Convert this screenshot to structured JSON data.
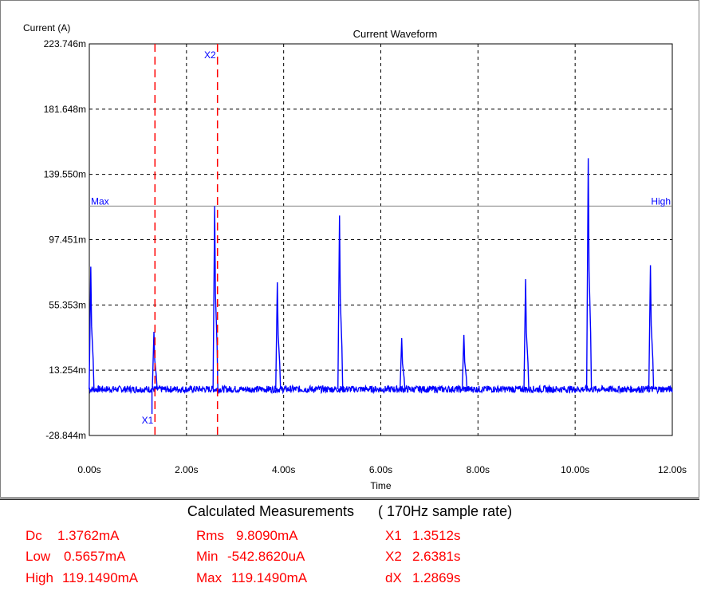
{
  "chart_data": {
    "type": "line",
    "title": "Current Waveform",
    "ylabel": "Current (A)",
    "xlabel": "Time",
    "xlim": [
      0,
      12
    ],
    "ylim": [
      -28.844,
      223.746
    ],
    "y_ticks": [
      "223.746m",
      "181.648m",
      "139.550m",
      "97.451m",
      "55.353m",
      "13.254m",
      "-28.844m"
    ],
    "y_tick_values": [
      223.746,
      181.648,
      139.55,
      97.451,
      55.353,
      13.254,
      -28.844
    ],
    "x_ticks": [
      "0.00s",
      "2.00s",
      "4.00s",
      "6.00s",
      "8.00s",
      "10.00s",
      "12.00s"
    ],
    "x_tick_values": [
      0,
      2,
      4,
      6,
      8,
      10,
      12
    ],
    "grid": true,
    "series": [
      {
        "color": "#0000ff",
        "baseline": 1.0,
        "peaks": [
          {
            "x": 0.03,
            "y": 80.0
          },
          {
            "x": 1.33,
            "y": 38.0
          },
          {
            "x": 2.58,
            "y": 119.149
          },
          {
            "x": 3.87,
            "y": 70.0
          },
          {
            "x": 5.15,
            "y": 113.0
          },
          {
            "x": 6.43,
            "y": 34.0
          },
          {
            "x": 7.71,
            "y": 36.0
          },
          {
            "x": 8.98,
            "y": 72.0
          },
          {
            "x": 10.27,
            "y": 150.0
          },
          {
            "x": 11.55,
            "y": 81.0
          }
        ],
        "min": {
          "x": 1.29,
          "y": -15.0
        }
      }
    ],
    "level_line": {
      "y": 119.149,
      "left_label": "Max",
      "right_label": "High",
      "color": "#808080"
    },
    "cursors": [
      {
        "name": "X1",
        "x": 1.3512,
        "color": "#ff0000"
      },
      {
        "name": "X2",
        "x": 2.6381,
        "color": "#ff0000"
      }
    ]
  },
  "measurements": {
    "title": "Calculated Measurements",
    "sample_rate": "( 170Hz sample rate)",
    "rows": [
      [
        {
          "label": "Dc",
          "value": "1.3762mA"
        },
        {
          "label": "Rms",
          "value": "9.8090mA"
        },
        {
          "label": "X1",
          "value": "1.3512s"
        }
      ],
      [
        {
          "label": "Low",
          "value": "0.5657mA"
        },
        {
          "label": "Min",
          "value": "-542.8620uA"
        },
        {
          "label": "X2",
          "value": "2.6381s"
        }
      ],
      [
        {
          "label": "High",
          "value": "119.1490mA"
        },
        {
          "label": "Max",
          "value": "119.1490mA"
        },
        {
          "label": "dX",
          "value": "1.2869s"
        }
      ]
    ]
  }
}
